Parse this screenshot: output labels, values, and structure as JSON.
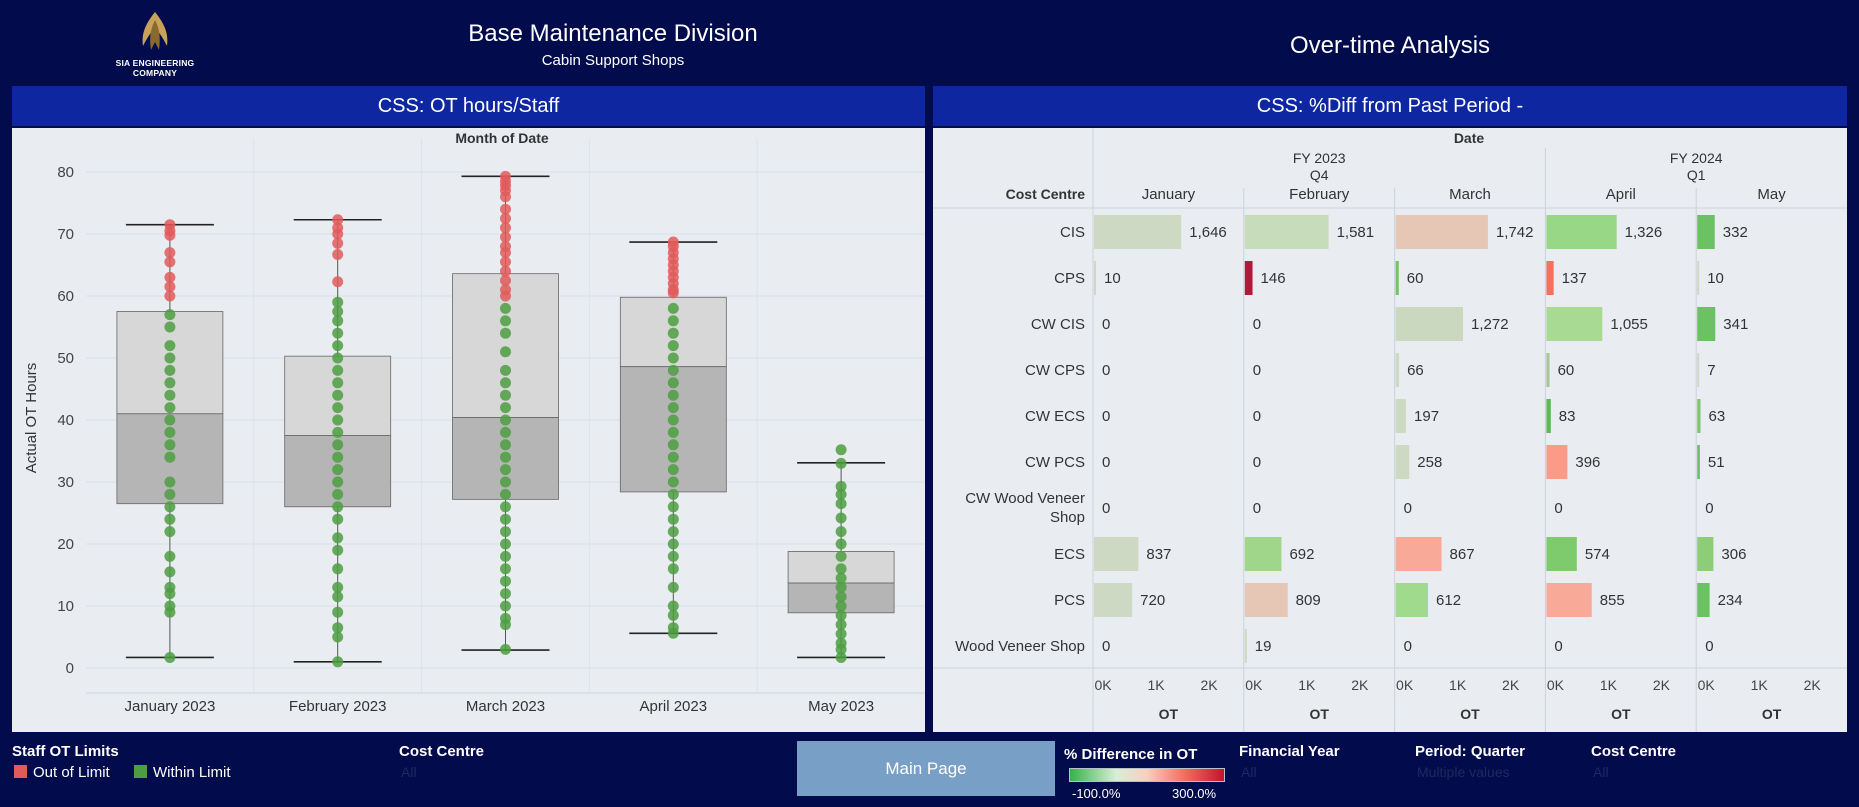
{
  "header": {
    "logo_text": "SIA ENGINEERING COMPANY",
    "title": "Base Maintenance Division",
    "subtitle": "Cabin Support Shops",
    "right_title": "Over-time Analysis"
  },
  "left_panel": {
    "band_title": "CSS: OT hours/Staff",
    "axis_top_label": "Month of Date",
    "y_label": "Actual OT Hours"
  },
  "right_panel": {
    "band_title": "CSS: %Diff from Past Period -",
    "date_label": "Date",
    "cost_centre_label": "Cost Centre",
    "fy2023": "FY 2023",
    "q4": "Q4",
    "fy2024": "FY 2024",
    "q1": "Q1",
    "measure_label": "OT"
  },
  "legend": {
    "title": "Staff OT Limits",
    "items": [
      {
        "label": "Out of Limit",
        "color": "#e25b5b"
      },
      {
        "label": "Within Limit",
        "color": "#4d9e42"
      }
    ]
  },
  "filters": [
    {
      "title": "Cost Centre",
      "value": "All"
    },
    {
      "title": "Financial Year",
      "value": "All"
    },
    {
      "title": "Period: Quarter",
      "value": "Multiple values"
    },
    {
      "title": "Cost Centre",
      "value": "All"
    }
  ],
  "main_button": "Main Page",
  "color_legend": {
    "title": "% Difference in OT",
    "min_label": "-100.0%",
    "max_label": "300.0%"
  },
  "chart_data": [
    {
      "type": "box",
      "title": "CSS: OT hours/Staff",
      "xlabel": "Month of Date",
      "ylabel": "Actual OT Hours",
      "ylim": [
        0,
        80
      ],
      "yticks": [
        0,
        10,
        20,
        30,
        40,
        50,
        60,
        70,
        80
      ],
      "categories": [
        "January 2023",
        "February 2023",
        "March 2023",
        "April 2023",
        "May 2023"
      ],
      "boxes": [
        {
          "min": 1.7,
          "q1": 26.5,
          "median": 41,
          "q3": 57.5,
          "max": 71.5
        },
        {
          "min": 1,
          "q1": 26,
          "median": 37.5,
          "q3": 50.3,
          "max": 72.3
        },
        {
          "min": 2.9,
          "q1": 27.2,
          "median": 40.4,
          "q3": 63.6,
          "max": 79.3
        },
        {
          "min": 5.6,
          "q1": 28.4,
          "median": 48.6,
          "q3": 59.8,
          "max": 68.7
        },
        {
          "min": 1.7,
          "q1": 8.9,
          "median": 13.7,
          "q3": 18.8,
          "max": 33.1
        }
      ],
      "points": [
        {
          "out_of_limit": [
            71.5,
            70.5,
            69.8,
            67,
            65.5,
            63,
            61.5,
            60
          ],
          "within_limit": [
            57,
            55,
            52,
            50,
            48,
            46,
            44,
            42,
            40,
            38,
            36,
            34,
            30,
            28,
            26,
            24,
            22,
            18,
            15.5,
            13,
            12,
            10,
            9,
            1.7
          ]
        },
        {
          "out_of_limit": [
            72.3,
            71,
            70,
            68.5,
            66.7,
            62.3
          ],
          "within_limit": [
            59,
            57.5,
            56,
            54,
            52,
            50,
            48,
            46,
            44,
            42,
            40,
            38,
            36,
            34,
            32,
            30,
            28,
            26,
            24,
            21,
            19,
            16,
            13,
            11.5,
            9,
            6.5,
            5,
            1
          ]
        },
        {
          "out_of_limit": [
            79.3,
            78.5,
            77.8,
            77,
            76,
            74,
            72.5,
            71,
            69.5,
            68,
            67,
            65.5,
            64,
            62.5,
            61,
            60
          ],
          "within_limit": [
            58,
            56,
            54,
            51,
            48,
            46,
            44,
            42,
            40,
            38,
            36,
            34,
            32,
            30,
            28,
            26,
            24,
            22,
            20,
            18,
            16,
            14,
            12,
            10,
            8,
            7,
            3
          ]
        },
        {
          "out_of_limit": [
            68.7,
            68,
            67,
            66,
            65,
            64,
            63,
            62,
            61,
            60.5
          ],
          "within_limit": [
            58,
            56,
            54,
            52,
            50,
            48,
            46,
            44,
            42,
            40,
            38,
            36,
            34,
            32,
            30,
            28,
            26,
            24,
            22,
            20,
            18,
            16,
            13,
            10,
            8.5,
            6.5,
            5.6
          ]
        },
        {
          "out_of_limit": [],
          "within_limit": [
            35.2,
            33,
            29.3,
            28,
            26.5,
            24.2,
            22,
            20,
            18,
            16,
            14.5,
            13,
            11.5,
            10,
            8.5,
            7,
            5.5,
            4,
            3,
            1.7
          ]
        }
      ],
      "colors": {
        "out_of_limit": "#e25b5b",
        "within_limit": "#4d9e42"
      }
    },
    {
      "type": "bar",
      "title": "CSS: %Diff from Past Period -",
      "xlabel": "OT",
      "xticks": [
        "0K",
        "1K",
        "2K"
      ],
      "xlim": [
        0,
        2500
      ],
      "columns": [
        "January",
        "February",
        "March",
        "April",
        "May"
      ],
      "rows": [
        {
          "cost_centre": "CIS",
          "values": [
            1646,
            1581,
            1742,
            1326,
            332
          ],
          "colors": [
            "#cdd9c2",
            "#c7dcba",
            "#e6c6b4",
            "#98d786",
            "#6cc163"
          ]
        },
        {
          "cost_centre": "CPS",
          "values": [
            10,
            146,
            60,
            137,
            10
          ],
          "colors": [
            "#cdd9c2",
            "#b5173b",
            "#74c466",
            "#f4705f",
            "#cdd9c2"
          ]
        },
        {
          "cost_centre": "CW CIS",
          "values": [
            0,
            0,
            1272,
            1055,
            341
          ],
          "colors": [
            "#cdd9c2",
            "#cdd9c2",
            "#cbd8c0",
            "#a9da93",
            "#6cc163"
          ]
        },
        {
          "cost_centre": "CW CPS",
          "values": [
            0,
            0,
            66,
            60,
            7
          ],
          "colors": [
            "#cdd9c2",
            "#cdd9c2",
            "#cdd9c2",
            "#a8c69a",
            "#cdd9c2"
          ]
        },
        {
          "cost_centre": "CW ECS",
          "values": [
            0,
            0,
            197,
            83,
            63
          ],
          "colors": [
            "#cdd9c2",
            "#cdd9c2",
            "#cdd9c2",
            "#5fb856",
            "#7fc76f"
          ]
        },
        {
          "cost_centre": "CW PCS",
          "values": [
            0,
            0,
            258,
            396,
            51
          ],
          "colors": [
            "#cdd9c2",
            "#cdd9c2",
            "#cdd9c2",
            "#f99b86",
            "#6cc163"
          ]
        },
        {
          "cost_centre": "CW Wood Veneer Shop",
          "values": [
            0,
            0,
            0,
            0,
            0
          ],
          "colors": [
            "#cdd9c2",
            "#cdd9c2",
            "#cdd9c2",
            "#cdd9c2",
            "#cdd9c2"
          ]
        },
        {
          "cost_centre": "ECS",
          "values": [
            837,
            692,
            867,
            574,
            306
          ],
          "colors": [
            "#cdd9c2",
            "#9fd68a",
            "#f9a997",
            "#7dcb6d",
            "#8ecd78"
          ]
        },
        {
          "cost_centre": "PCS",
          "values": [
            720,
            809,
            612,
            855,
            234
          ],
          "colors": [
            "#cdd9c2",
            "#e6c6b4",
            "#a0da8c",
            "#f9a997",
            "#6cc163"
          ]
        },
        {
          "cost_centre": "Wood Veneer Shop",
          "values": [
            0,
            19,
            0,
            0,
            0
          ],
          "colors": [
            "#cdd9c2",
            "#cdd9c2",
            "#cdd9c2",
            "#cdd9c2",
            "#cdd9c2"
          ]
        }
      ]
    }
  ]
}
